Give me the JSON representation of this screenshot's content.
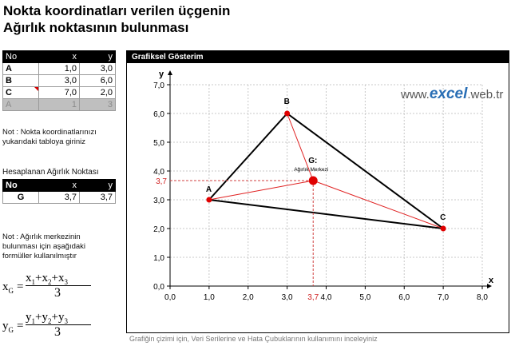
{
  "page": {
    "title_line1": "Nokta koordinatları verilen üçgenin",
    "title_line2": "Ağırlık noktasının bulunması"
  },
  "input_table": {
    "headers": [
      "No",
      "x",
      "y"
    ],
    "rows": [
      {
        "no": "A",
        "x": "1,0",
        "y": "3,0"
      },
      {
        "no": "B",
        "x": "3,0",
        "y": "6,0"
      },
      {
        "no": "C",
        "x": "7,0",
        "y": "2,0"
      },
      {
        "no": "A",
        "x": "1",
        "y": "3"
      }
    ]
  },
  "note1": [
    "Not : Nokta koordinatlarınızı",
    "yukarıdaki tabloya giriniz"
  ],
  "result": {
    "caption": "Hesaplanan Ağırlık Noktası",
    "headers": [
      "No",
      "x",
      "y"
    ],
    "row": {
      "no": "G",
      "x": "3,7",
      "y": "3,7"
    }
  },
  "note2": [
    "Not : Ağırlık merkezinin",
    "bulunması için aşağıdaki",
    "formüller kullanılmıştır"
  ],
  "formulas": {
    "x": {
      "lhs": "x",
      "lhs_sub": "G",
      "num_var": "x",
      "den": "3"
    },
    "y": {
      "lhs": "y",
      "lhs_sub": "G",
      "num_var": "y",
      "den": "3"
    }
  },
  "chart_panel": {
    "title": "Grafiksel Gösterim",
    "watermark_pre": "www.",
    "watermark_brand": "excel",
    "watermark_post": ".web.tr"
  },
  "chart_data": {
    "type": "scatter",
    "xlabel": "x",
    "ylabel": "y",
    "xlim": [
      0,
      8
    ],
    "ylim": [
      0,
      7
    ],
    "x_ticks": [
      "0,0",
      "1,0",
      "2,0",
      "3,0",
      "4,0",
      "5,0",
      "6,0",
      "7,0",
      "8,0"
    ],
    "y_ticks": [
      "0,0",
      "1,0",
      "2,0",
      "3,0",
      "4,0",
      "5,0",
      "6,0",
      "7,0"
    ],
    "points": [
      {
        "label": "A",
        "x": 1,
        "y": 3
      },
      {
        "label": "B",
        "x": 3,
        "y": 6
      },
      {
        "label": "C",
        "x": 7,
        "y": 2
      }
    ],
    "centroid": {
      "label": "G:",
      "sublabel": "Ağırlık Merkezi",
      "x": 3.667,
      "y": 3.667,
      "x_text": "3,7",
      "y_text": "3,7"
    },
    "grid": true,
    "colors": {
      "triangle": "#000000",
      "medians": "#e02020",
      "points": "#e00000",
      "guides": "#d04040"
    }
  },
  "footer": "Grafiğin çizimi için, Veri Serilerine ve Hata Çubuklarının kullanımını inceleyiniz"
}
